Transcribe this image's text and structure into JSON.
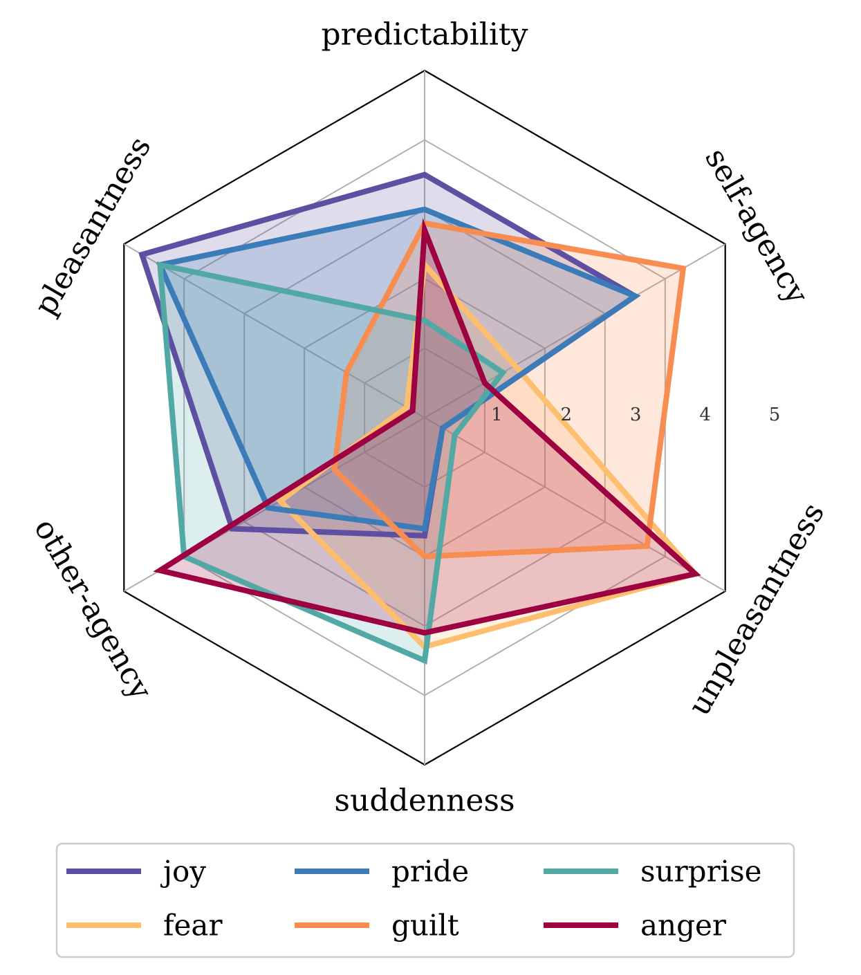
{
  "chart_data": {
    "type": "radar",
    "axes": [
      "predictability",
      "self-agency",
      "unpleasantness",
      "suddenness",
      "other-agency",
      "pleasantness"
    ],
    "rmin": 0,
    "rmax": 5,
    "ticks": [
      "1",
      "2",
      "3",
      "4",
      "5"
    ],
    "grid": true,
    "legend_position": "bottom",
    "series": [
      {
        "name": "joy",
        "color": "#5e4fa2",
        "values": [
          3.5,
          3.5,
          0.3,
          1.7,
          3.2,
          4.7
        ]
      },
      {
        "name": "fear",
        "color": "#fdbf6f",
        "values": [
          2.2,
          1.5,
          4.5,
          3.3,
          2.4,
          0.3
        ]
      },
      {
        "name": "pride",
        "color": "#3a7bb8",
        "values": [
          3.0,
          3.5,
          0.3,
          1.6,
          2.6,
          4.4
        ]
      },
      {
        "name": "guilt",
        "color": "#f88d52",
        "values": [
          2.8,
          4.3,
          3.7,
          2.0,
          1.5,
          1.3
        ]
      },
      {
        "name": "surprise",
        "color": "#52a8a4",
        "values": [
          1.4,
          1.3,
          0.5,
          3.5,
          4.0,
          4.4
        ]
      },
      {
        "name": "anger",
        "color": "#9e0142",
        "values": [
          2.7,
          1.0,
          4.5,
          3.1,
          4.4,
          0.2
        ]
      }
    ]
  }
}
